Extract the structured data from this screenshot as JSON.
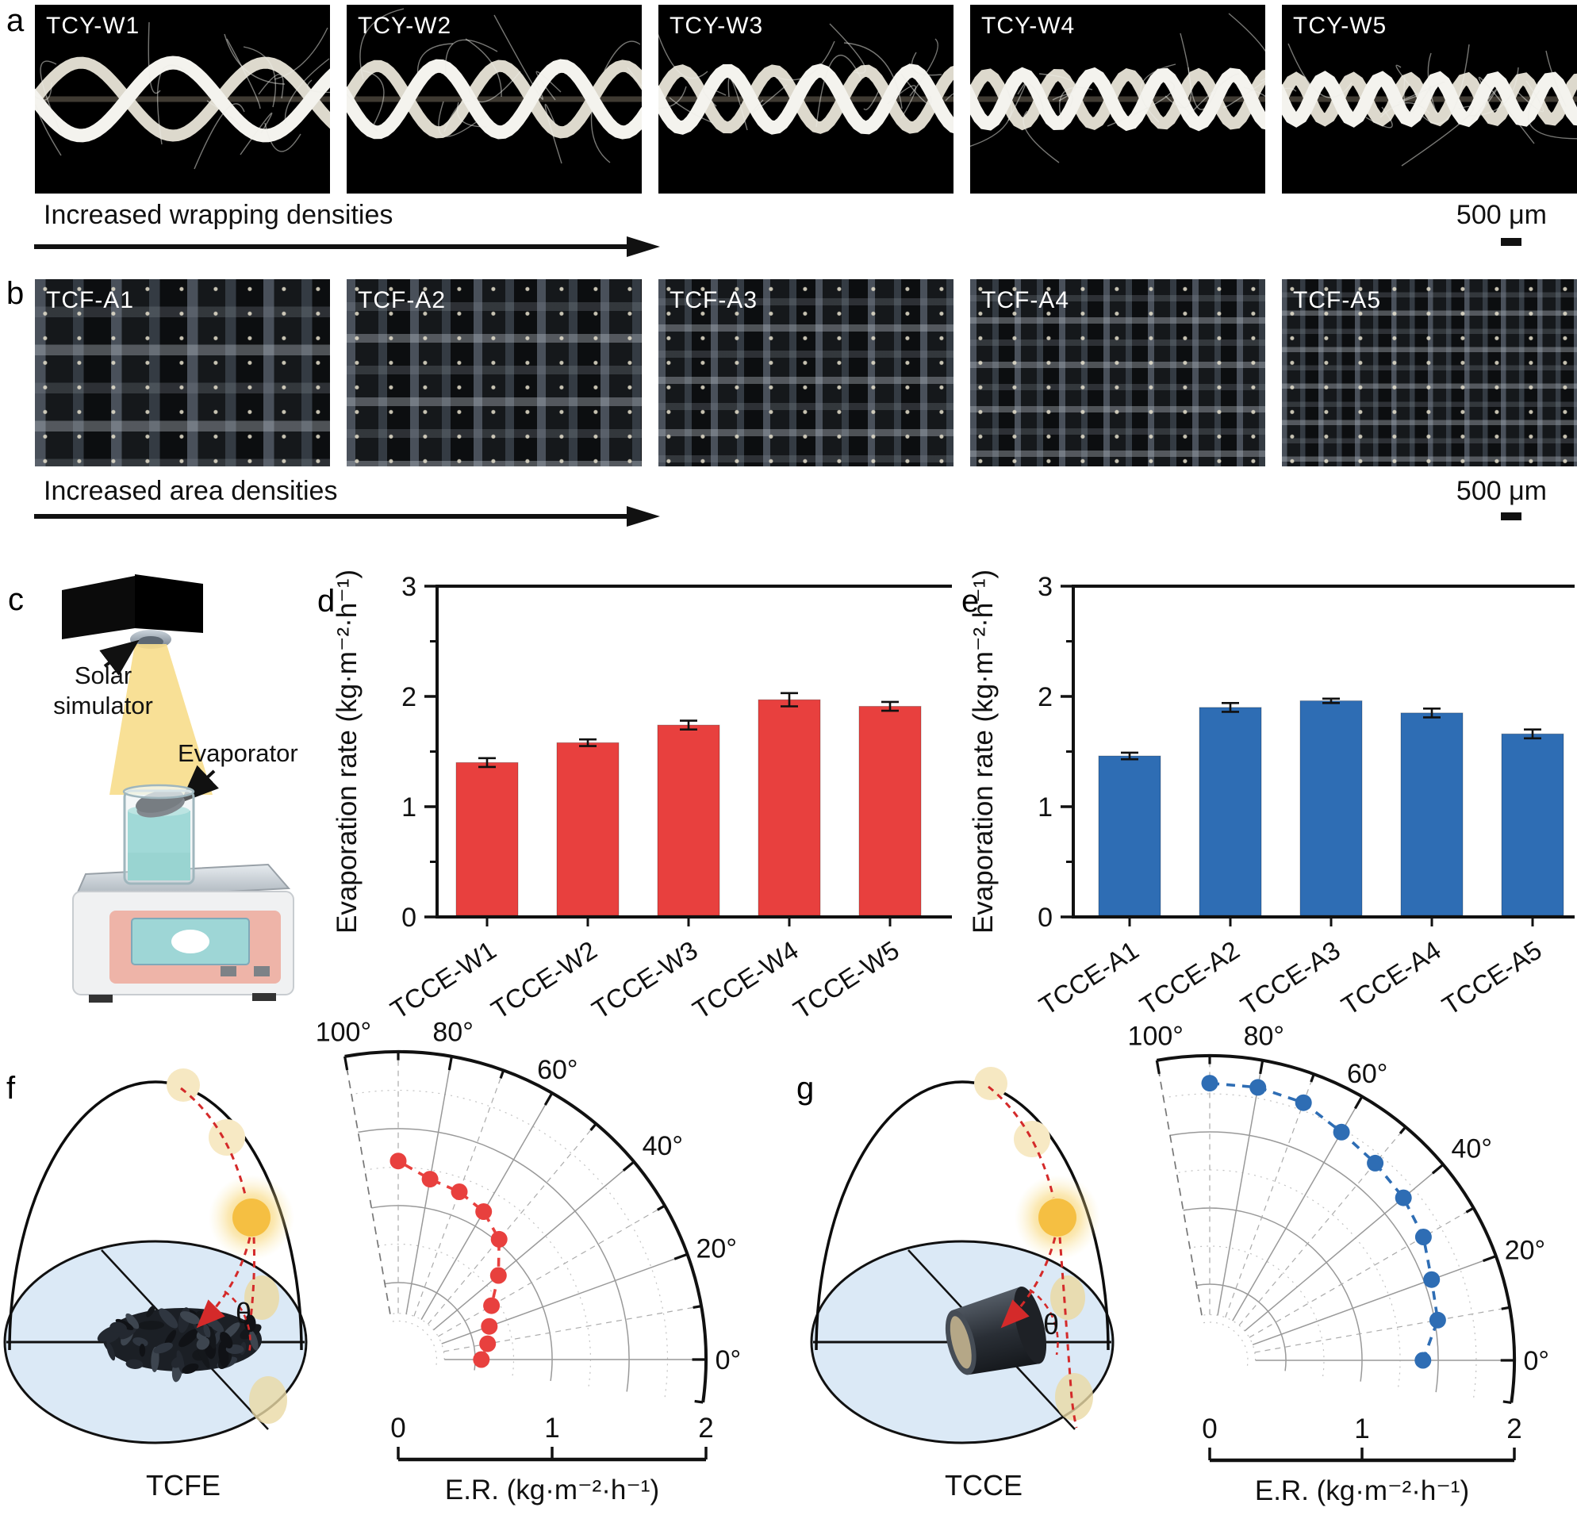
{
  "figure": {
    "type": "scientific-figure"
  },
  "panel_a": {
    "letter": "a",
    "image_labels": [
      "TCY-W1",
      "TCY-W2",
      "TCY-W3",
      "TCY-W4",
      "TCY-W5"
    ],
    "caption": "Increased wrapping densities",
    "scale_label": "500 μm"
  },
  "panel_b": {
    "letter": "b",
    "image_labels": [
      "TCF-A1",
      "TCF-A2",
      "TCF-A3",
      "TCF-A4",
      "TCF-A5"
    ],
    "caption": "Increased area densities",
    "scale_label": "500 μm"
  },
  "panel_c": {
    "letter": "c",
    "solar_label_lines": [
      "Solar",
      "simulator"
    ],
    "evaporator_label": "Evaporator"
  },
  "panel_d": {
    "letter": "d"
  },
  "panel_e": {
    "letter": "e"
  },
  "panel_f": {
    "letter": "f",
    "illustration_label": "TCFE",
    "theta_label": "θ"
  },
  "panel_g": {
    "letter": "g",
    "illustration_label": "TCCE",
    "theta_label": "θ"
  },
  "colors": {
    "red": "#e8403e",
    "blue": "#2e6db4",
    "water_blue": "#dbe9f6",
    "sun_yellow": "#f5bf42"
  },
  "chart_data": [
    {
      "id": "panel_d_bar",
      "type": "bar",
      "categories": [
        "TCCE-W1",
        "TCCE-W2",
        "TCCE-W3",
        "TCCE-W4",
        "TCCE-W5"
      ],
      "values": [
        1.4,
        1.58,
        1.74,
        1.97,
        1.91
      ],
      "errors": [
        0.04,
        0.03,
        0.04,
        0.06,
        0.04
      ],
      "title": "",
      "xlabel": "",
      "ylabel": "Evaporation rate (kg·m⁻²·h⁻¹)",
      "ylim": [
        0,
        3
      ],
      "yticks": [
        0,
        1,
        2,
        3
      ],
      "grid": false,
      "bar_color": "#e8403e"
    },
    {
      "id": "panel_e_bar",
      "type": "bar",
      "categories": [
        "TCCE-A1",
        "TCCE-A2",
        "TCCE-A3",
        "TCCE-A4",
        "TCCE-A5"
      ],
      "values": [
        1.46,
        1.9,
        1.96,
        1.85,
        1.66
      ],
      "errors": [
        0.03,
        0.04,
        0.02,
        0.04,
        0.04
      ],
      "title": "",
      "xlabel": "",
      "ylabel": "Evaporation rate (kg·m⁻²·h⁻¹)",
      "ylim": [
        0,
        3
      ],
      "yticks": [
        0,
        1,
        2,
        3
      ],
      "grid": false,
      "bar_color": "#2e6db4"
    },
    {
      "id": "panel_f_polar",
      "type": "line",
      "polar": true,
      "series_name": "TCFE",
      "angles_deg": [
        0,
        10,
        20,
        30,
        40,
        50,
        60,
        70,
        80,
        90
      ],
      "values": [
        0.54,
        0.59,
        0.63,
        0.7,
        0.85,
        1.02,
        1.11,
        1.16,
        1.19,
        1.29
      ],
      "angle_ticks_deg": [
        0,
        20,
        40,
        60,
        80,
        100
      ],
      "angle_tick_labels": [
        "0°",
        "20°",
        "40°",
        "60°",
        "80°",
        "100°"
      ],
      "rlim": [
        0,
        2
      ],
      "rticks": [
        0,
        1,
        2
      ],
      "xlabel": "E.R. (kg·m⁻²·h⁻¹)",
      "color": "#e8403e"
    },
    {
      "id": "panel_g_polar",
      "type": "line",
      "polar": true,
      "series_name": "TCCE",
      "angles_deg": [
        0,
        10,
        20,
        30,
        40,
        50,
        60,
        70,
        80,
        90
      ],
      "values": [
        1.4,
        1.52,
        1.55,
        1.62,
        1.66,
        1.69,
        1.73,
        1.8,
        1.82,
        1.82
      ],
      "angle_ticks_deg": [
        0,
        20,
        40,
        60,
        80,
        100
      ],
      "angle_tick_labels": [
        "0°",
        "20°",
        "40°",
        "60°",
        "80°",
        "100°"
      ],
      "rlim": [
        0,
        2
      ],
      "rticks": [
        0,
        1,
        2
      ],
      "xlabel": "E.R. (kg·m⁻²·h⁻¹)",
      "color": "#2e6db4"
    }
  ]
}
